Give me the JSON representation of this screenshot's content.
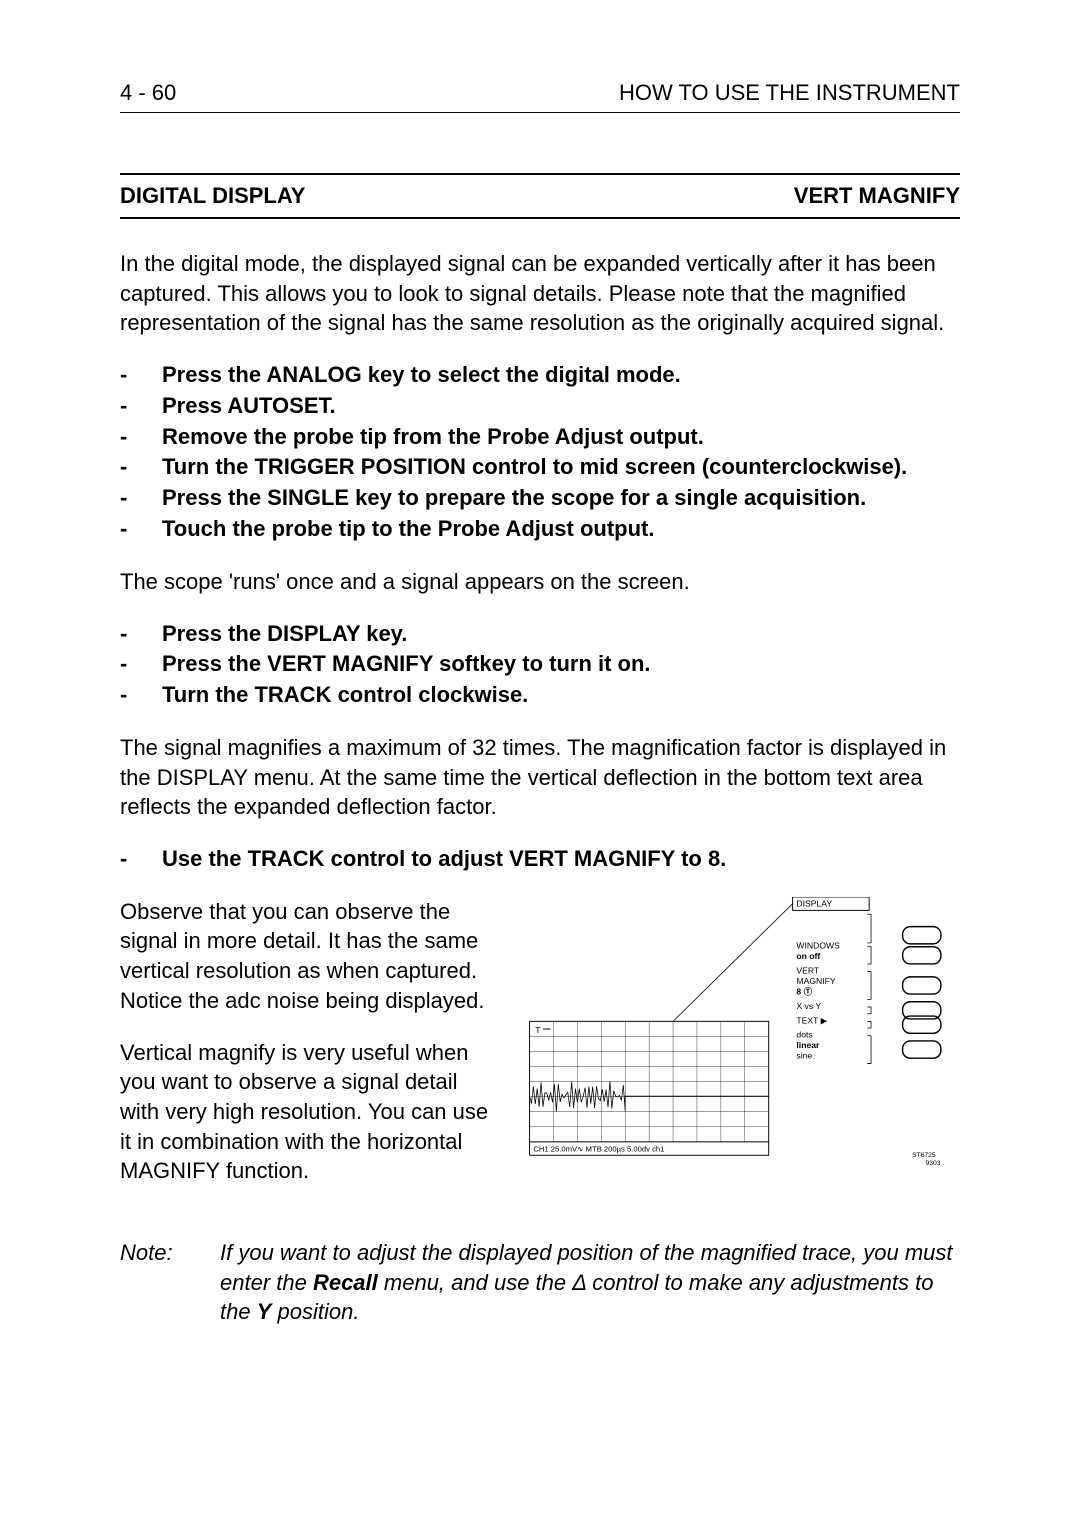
{
  "header": {
    "page_ref": "4 - 60",
    "section_title": "HOW TO USE THE INSTRUMENT"
  },
  "section": {
    "left": "DIGITAL DISPLAY",
    "right": "VERT MAGNIFY"
  },
  "intro": "In the digital mode, the displayed signal can be expanded vertically after it has been captured. This allows you to look to signal details. Please note that the magnified representation of the signal has the same resolution as the originally acquired signal.",
  "steps1": [
    "Press the ANALOG key to select the digital mode.",
    "Press AUTOSET.",
    "Remove the probe tip from the Probe Adjust output.",
    "Turn the TRIGGER POSITION control to mid screen (counterclockwise).",
    "Press the SINGLE key to prepare the scope for a single acquisition.",
    "Touch the probe tip to the Probe Adjust output."
  ],
  "mid_text1": "The scope 'runs' once and a signal appears on the screen.",
  "steps2": [
    "Press the DISPLAY key.",
    "Press the VERT MAGNIFY softkey to turn it on.",
    "Turn the TRACK control clockwise."
  ],
  "mid_text2": "The signal magnifies a maximum of 32 times. The magnification factor is displayed in the DISPLAY menu. At the same time the vertical deflection in the bottom text area reflects the expanded deflection factor.",
  "steps3": [
    "Use the TRACK control to adjust VERT MAGNIFY to 8."
  ],
  "observe1": "Observe that you can observe the signal in more detail. It has the same vertical resolution as when captured. Notice the adc noise being displayed.",
  "observe2": "Vertical magnify is very useful when you want to observe a signal detail with very high resolution. You can use it in combination with the horizontal MAGNIFY function.",
  "note": {
    "label": "Note:",
    "text_before": "If you want to adjust the displayed position of the magnified trace, you must enter the ",
    "recall": "Recall",
    "text_mid": " menu, and use the Δ control to make any adjustments to the ",
    "ypos": "Y",
    "text_after": " position."
  },
  "diagram": {
    "type": "infographic",
    "background_color": "#ffffff",
    "line_color": "#000000",
    "text_fontsize": 10,
    "scope": {
      "rows": 8,
      "cols": 10,
      "grid_color": "#000000",
      "bottom_text": "CH1 25.0mV∿   MTB 200µs  5.00dv ch1",
      "tmark": "T",
      "waveform_row": 5,
      "waveform_color": "#000000"
    },
    "menu": {
      "title": "DISPLAY",
      "items": [
        {
          "lines": [
            "WINDOWS",
            "on off"
          ],
          "bold_index": 1,
          "bold_word": "off"
        },
        {
          "lines": [
            "VERT",
            "MAGNIFY",
            "8         Ⓣ"
          ],
          "bold_index": 2,
          "bold_word": "8"
        },
        {
          "lines": [
            "X vs Y"
          ]
        },
        {
          "lines": [
            "TEXT     ▶"
          ]
        },
        {
          "lines": [
            "dots",
            "linear",
            "sine"
          ],
          "bold_index": 1,
          "bold_word": "linear"
        }
      ]
    },
    "buttons_count": 6,
    "footer_id": "ST6725\n9303"
  }
}
